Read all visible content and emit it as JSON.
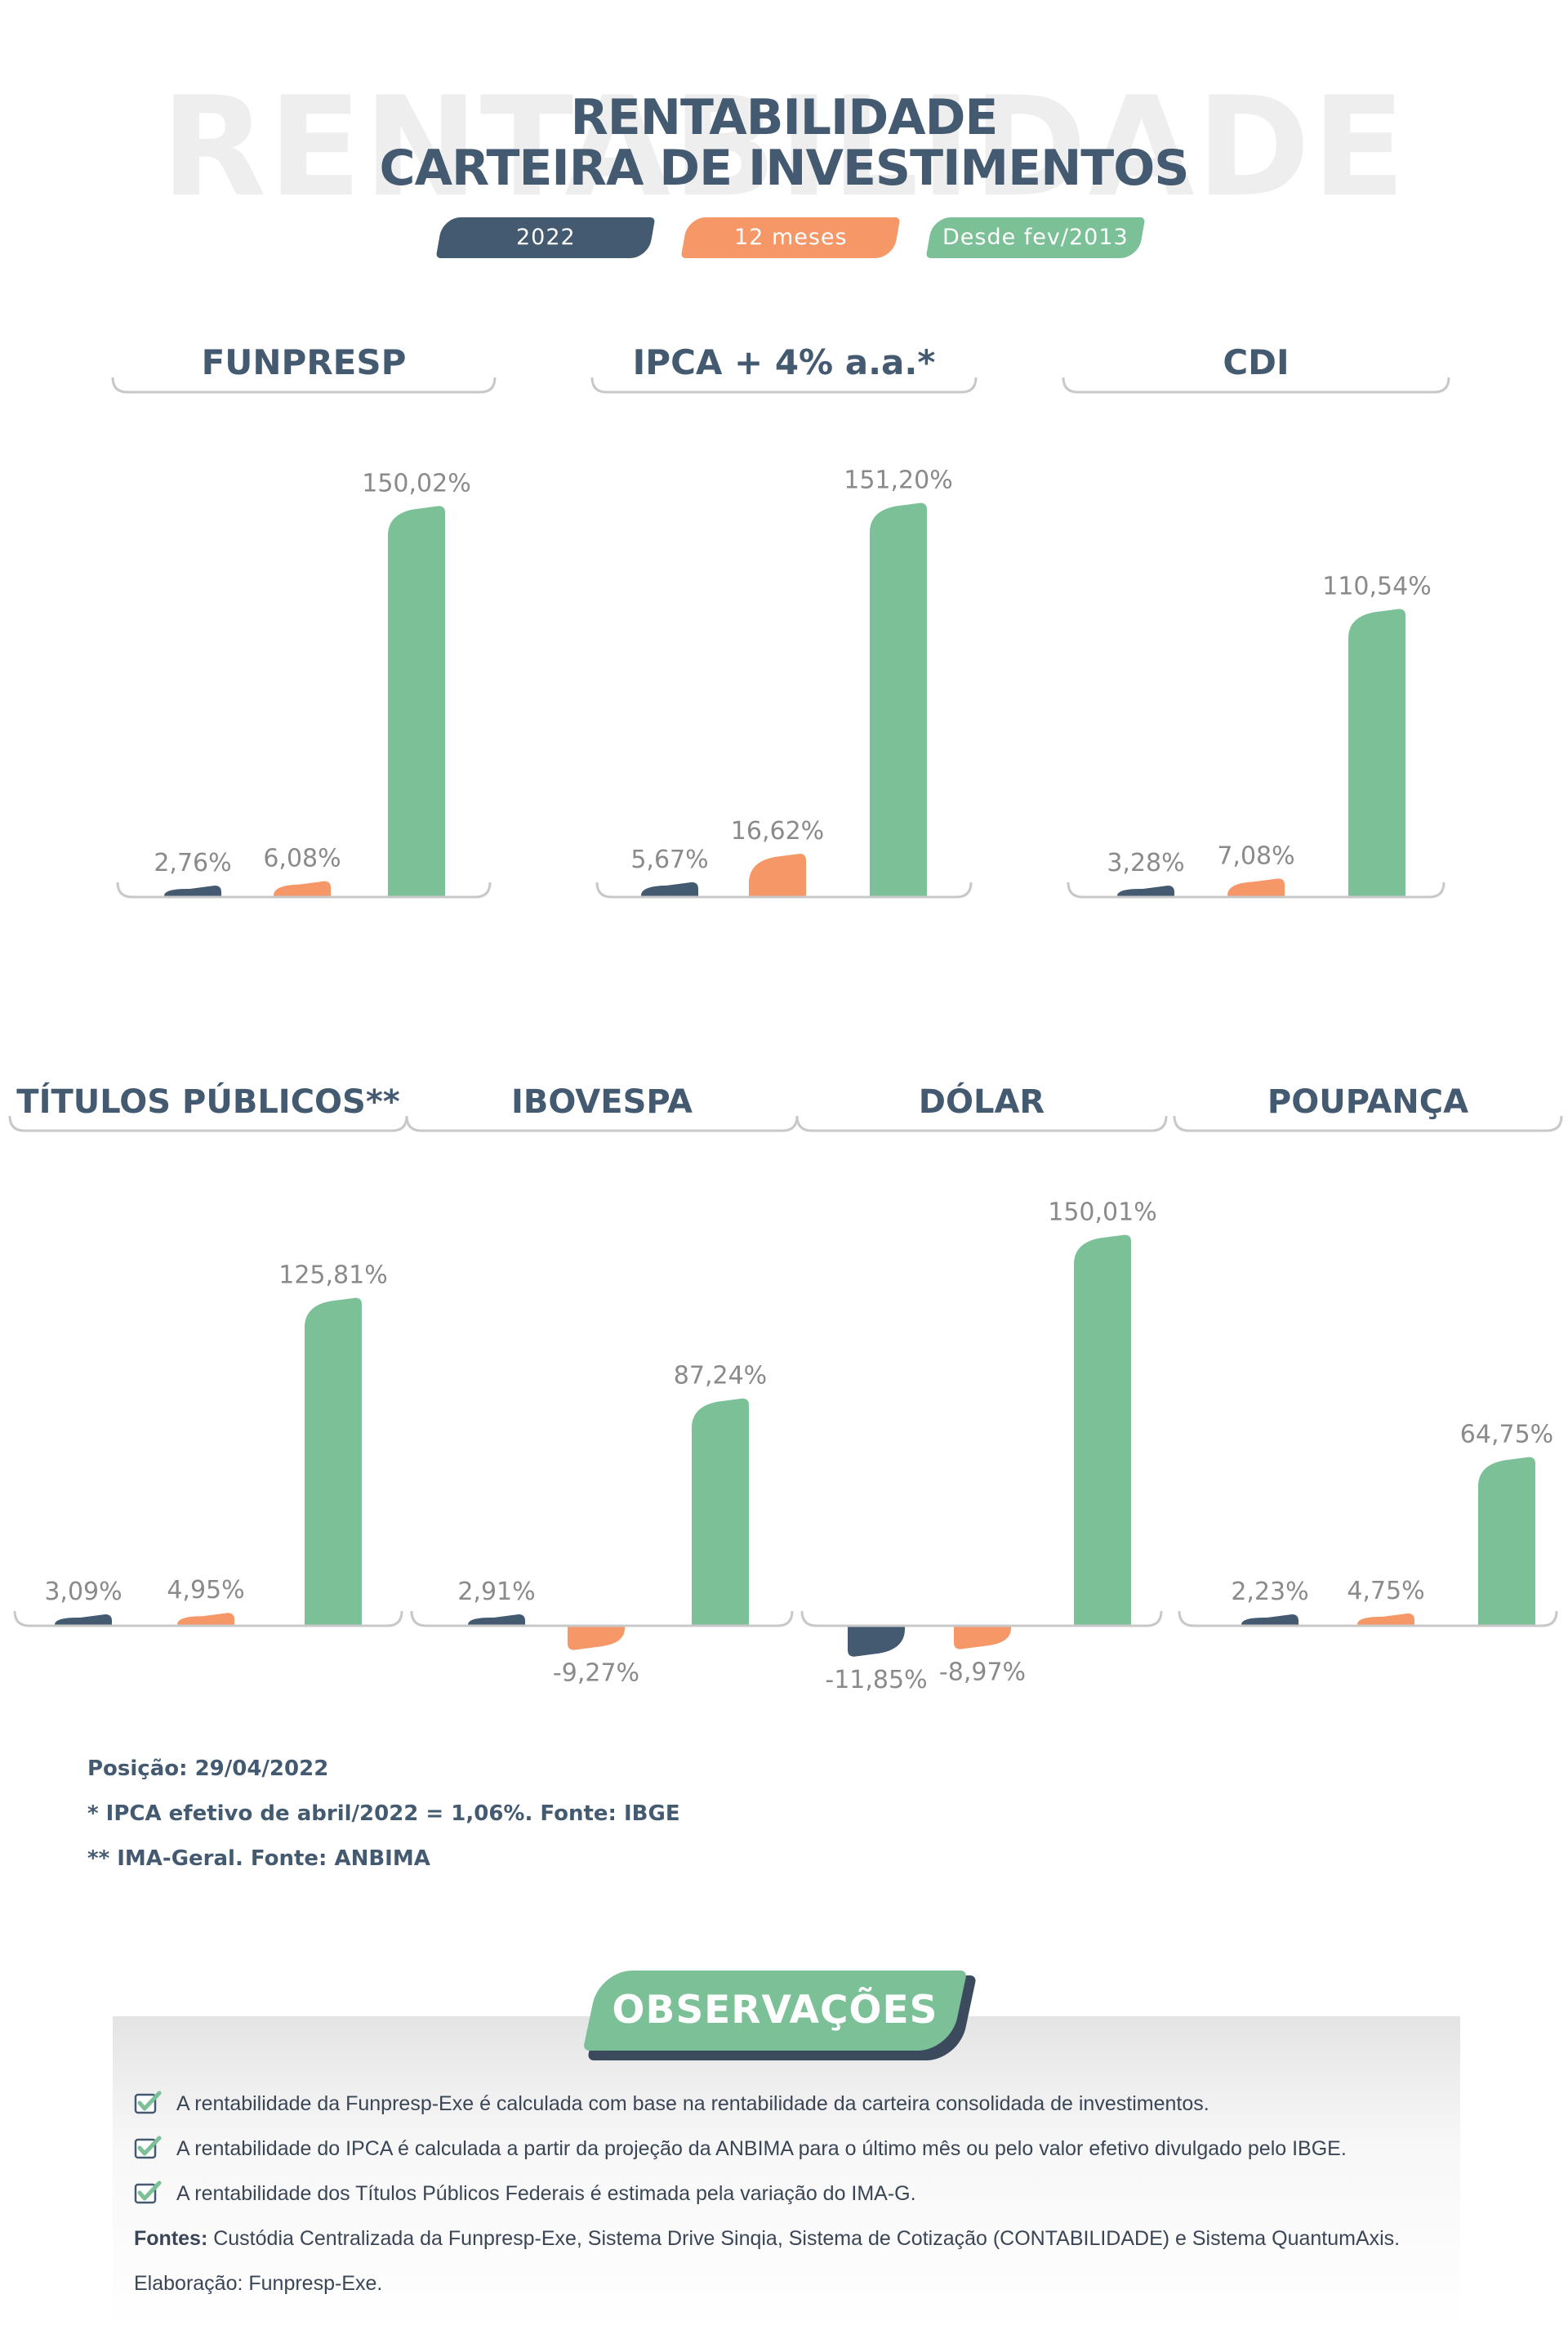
{
  "title": {
    "background_word": "RENTABILIDADE",
    "line1": "RENTABILIDADE",
    "line2": "CARTEIRA DE INVESTIMENTOS"
  },
  "legend": [
    {
      "label": "2022",
      "color": "#445a70"
    },
    {
      "label": "12 meses",
      "color": "#f59766"
    },
    {
      "label": "Desde fev/2013",
      "color": "#7cc098"
    }
  ],
  "chart_data": [
    {
      "type": "bar",
      "title": "FUNPRESP",
      "categories": [
        "2022",
        "12 meses",
        "Desde fev/2013"
      ],
      "values": [
        2.76,
        6.08,
        150.02
      ],
      "labels": [
        "2,76%",
        "6,08%",
        "150,02%"
      ]
    },
    {
      "type": "bar",
      "title": "IPCA + 4% a.a.*",
      "categories": [
        "2022",
        "12 meses",
        "Desde fev/2013"
      ],
      "values": [
        5.67,
        16.62,
        151.2
      ],
      "labels": [
        "5,67%",
        "16,62%",
        "151,20%"
      ]
    },
    {
      "type": "bar",
      "title": "CDI",
      "categories": [
        "2022",
        "12 meses",
        "Desde fev/2013"
      ],
      "values": [
        3.28,
        7.08,
        110.54
      ],
      "labels": [
        "3,28%",
        "7,08%",
        "110,54%"
      ]
    },
    {
      "type": "bar",
      "title": "TÍTULOS PÚBLICOS**",
      "categories": [
        "2022",
        "12 meses",
        "Desde fev/2013"
      ],
      "values": [
        3.09,
        4.95,
        125.81
      ],
      "labels": [
        "3,09%",
        "4,95%",
        "125,81%"
      ]
    },
    {
      "type": "bar",
      "title": "IBOVESPA",
      "categories": [
        "2022",
        "12 meses",
        "Desde fev/2013"
      ],
      "values": [
        2.91,
        -9.27,
        87.24
      ],
      "labels": [
        "2,91%",
        "-9,27%",
        "87,24%"
      ]
    },
    {
      "type": "bar",
      "title": "DÓLAR",
      "categories": [
        "2022",
        "12 meses",
        "Desde fev/2013"
      ],
      "values": [
        -11.85,
        -8.97,
        150.01
      ],
      "labels": [
        "-11,85%",
        "-8,97%",
        "150,01%"
      ]
    },
    {
      "type": "bar",
      "title": "POUPANÇA",
      "categories": [
        "2022",
        "12 meses",
        "Desde fev/2013"
      ],
      "values": [
        2.23,
        4.75,
        64.75
      ],
      "labels": [
        "2,23%",
        "4,75%",
        "64,75%"
      ]
    }
  ],
  "notes": [
    "Posição: 29/04/2022",
    "* IPCA efetivo de abril/2022 = 1,06%. Fonte: IBGE",
    "** IMA-Geral. Fonte: ANBIMA"
  ],
  "observations": {
    "title": "OBSERVAÇÕES",
    "items": [
      "A rentabilidade da Funpresp-Exe é calculada com base na rentabilidade da carteira consolidada de investimentos.",
      "A rentabilidade do IPCA é calculada a partir da projeção da ANBIMA para o último mês ou pelo valor efetivo divulgado pelo IBGE.",
      "A rentabilidade dos Títulos Públicos Federais é estimada pela variação do IMA-G."
    ],
    "sources_label": "Fontes:",
    "sources_text": " Custódia Centralizada da Funpresp-Exe, Sistema Drive Sinqia, Sistema de Cotização (CONTABILIDADE) e Sistema QuantumAxis.",
    "elaboration": "Elaboração: Funpresp-Exe."
  }
}
